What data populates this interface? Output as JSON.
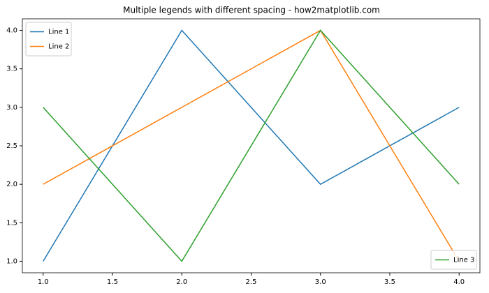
{
  "chart_data": {
    "type": "line",
    "title": "Multiple legends with different spacing - how2matplotlib.com",
    "x": [
      1,
      2,
      3,
      4
    ],
    "series": [
      {
        "name": "Line 1",
        "color": "#1f77b4",
        "values": [
          1,
          4,
          2,
          3
        ],
        "legend_loc": "upper left"
      },
      {
        "name": "Line 2",
        "color": "#ff7f0e",
        "values": [
          2,
          3,
          4,
          1
        ],
        "legend_loc": "upper left"
      },
      {
        "name": "Line 3",
        "color": "#2ca02c",
        "values": [
          3,
          1,
          4,
          2
        ],
        "legend_loc": "lower right"
      }
    ],
    "xlim": [
      0.85,
      4.15
    ],
    "ylim": [
      0.85,
      4.15
    ],
    "xticks": [
      {
        "value": 1,
        "label": "1.0"
      },
      {
        "value": 1.5,
        "label": "1.5"
      },
      {
        "value": 2,
        "label": "2.0"
      },
      {
        "value": 2.5,
        "label": "2.5"
      },
      {
        "value": 3,
        "label": "3.0"
      },
      {
        "value": 3.5,
        "label": "3.5"
      },
      {
        "value": 4,
        "label": "4.0"
      }
    ],
    "yticks": [
      {
        "value": 1,
        "label": "1.0"
      },
      {
        "value": 1.5,
        "label": "1.5"
      },
      {
        "value": 2,
        "label": "2.0"
      },
      {
        "value": 2.5,
        "label": "2.5"
      },
      {
        "value": 3,
        "label": "3.0"
      },
      {
        "value": 3.5,
        "label": "3.5"
      },
      {
        "value": 4,
        "label": "4.0"
      }
    ],
    "grid": false
  }
}
